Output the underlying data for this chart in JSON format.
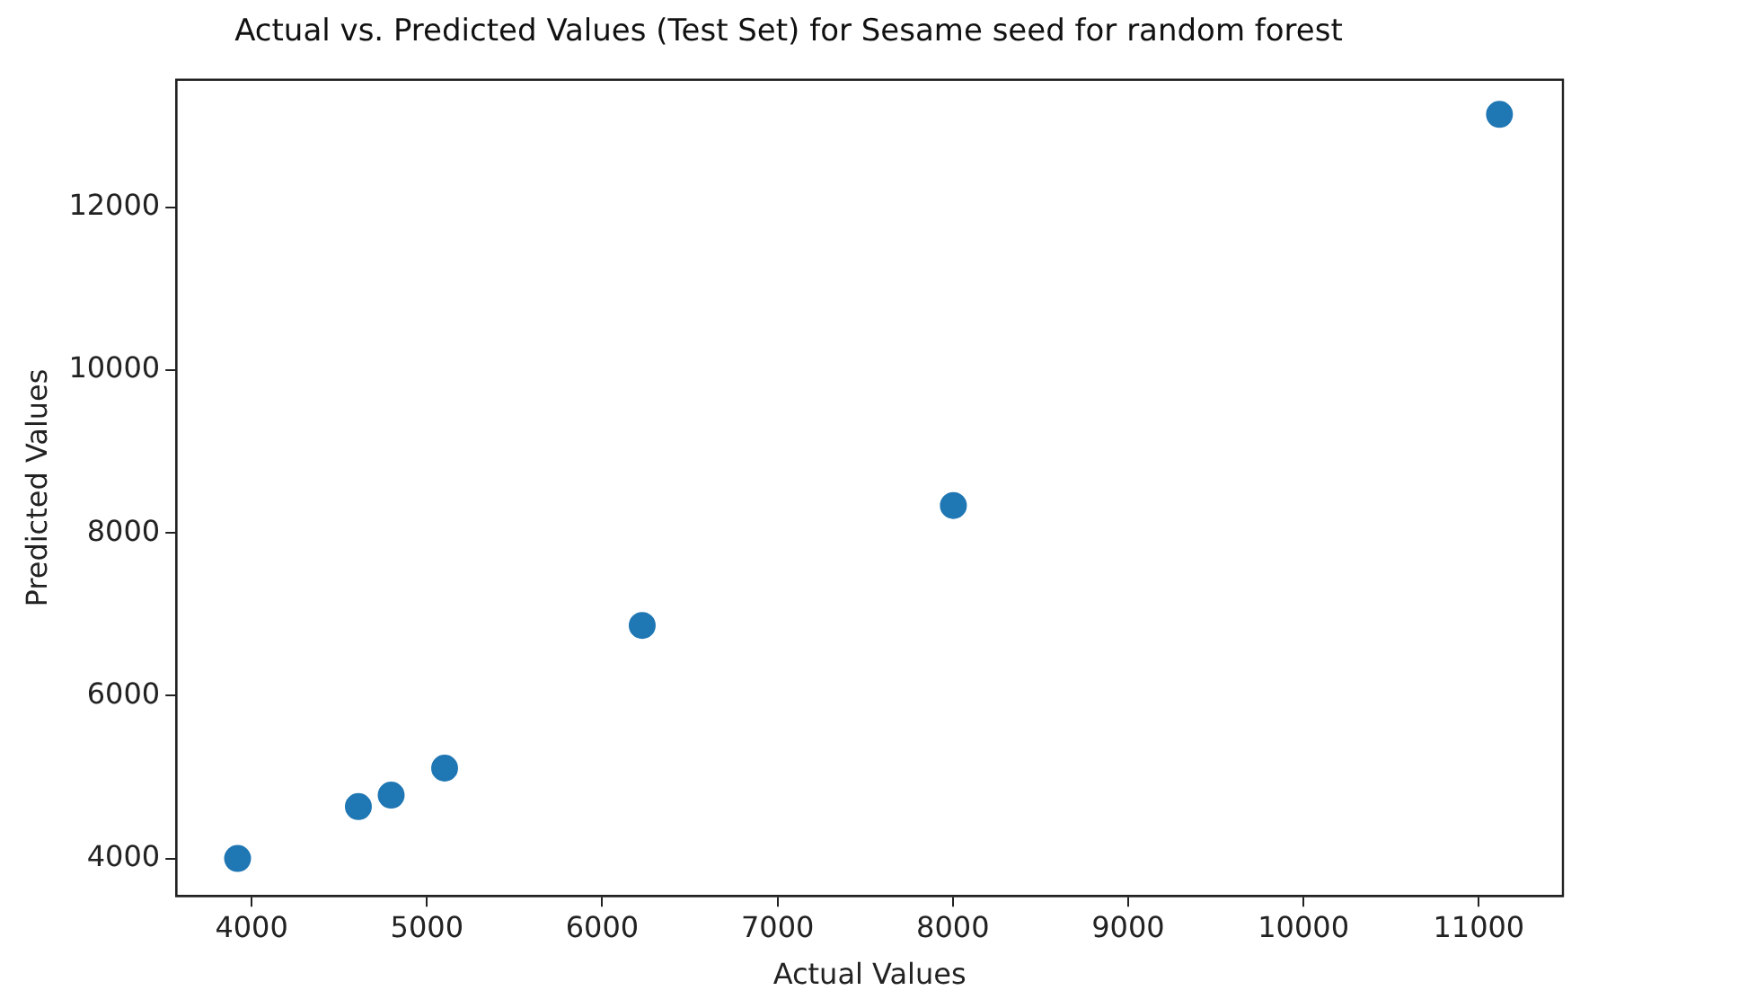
{
  "chart_data": {
    "type": "scatter",
    "title": "Actual vs. Predicted Values (Test Set) for Sesame seed for random forest",
    "xlabel": "Actual Values",
    "ylabel": "Predicted Values",
    "x": [
      3920,
      4609,
      4796,
      5101,
      6228,
      8003,
      11118
    ],
    "values": [
      4000,
      4637,
      4778,
      5110,
      6864,
      8338,
      13145
    ],
    "color": "#1f77b4",
    "marker": "circle",
    "xlim": [
      3570,
      11480
    ],
    "xticks": [
      4000,
      5000,
      6000,
      7000,
      8000,
      9000,
      10000,
      11000
    ],
    "ylim": [
      3540,
      13570
    ],
    "yticks": [
      4000,
      6000,
      8000,
      10000,
      12000
    ],
    "grid": false,
    "legend": false
  }
}
